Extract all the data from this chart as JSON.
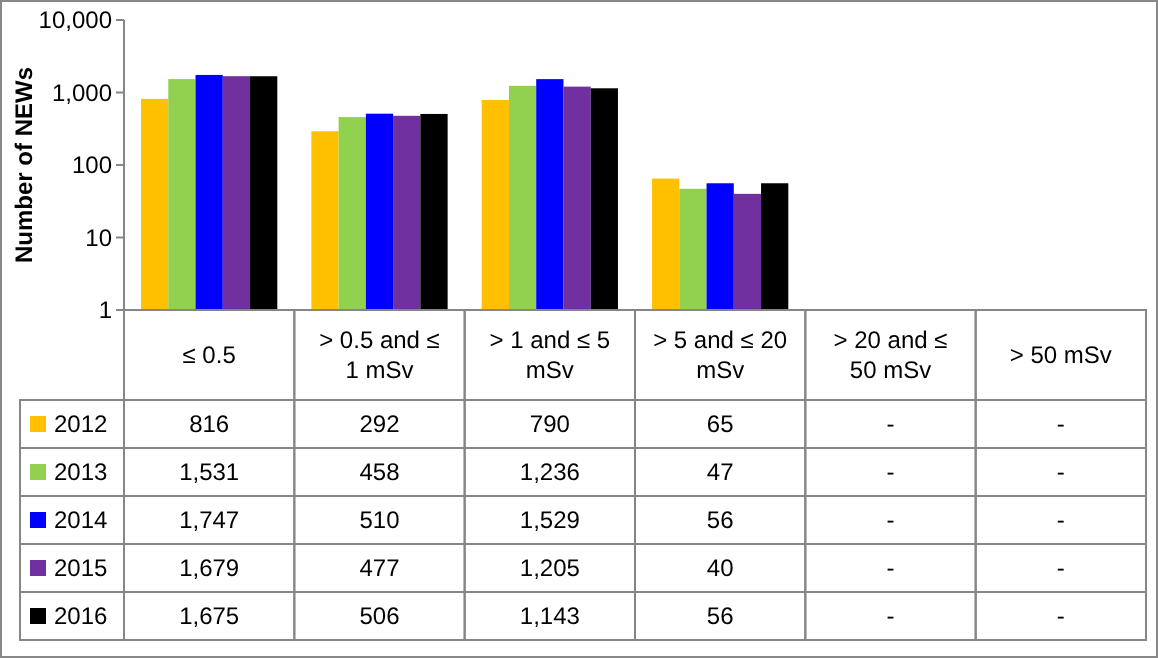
{
  "chart_data": {
    "type": "bar",
    "ylabel": "Number of NEWs",
    "categories": [
      "≤ 0.5",
      "> 0.5 and ≤ 1 mSv",
      "> 1 and ≤ 5 mSv",
      "> 5 and ≤ 20 mSv",
      "> 20 and ≤ 50 mSv",
      "> 50 mSv"
    ],
    "series": [
      {
        "name": "2012",
        "color": "#ffc000",
        "values": [
          816,
          292,
          790,
          65,
          null,
          null
        ],
        "value_labels": [
          "816",
          "292",
          "790",
          "65",
          "-",
          "-"
        ]
      },
      {
        "name": "2013",
        "color": "#92d050",
        "values": [
          1531,
          458,
          1236,
          47,
          null,
          null
        ],
        "value_labels": [
          "1,531",
          "458",
          "1,236",
          "47",
          "-",
          "-"
        ]
      },
      {
        "name": "2014",
        "color": "#0000ff",
        "values": [
          1747,
          510,
          1529,
          56,
          null,
          null
        ],
        "value_labels": [
          "1,747",
          "510",
          "1,529",
          "56",
          "-",
          "-"
        ]
      },
      {
        "name": "2015",
        "color": "#7030a0",
        "values": [
          1679,
          477,
          1205,
          40,
          null,
          null
        ],
        "value_labels": [
          "1,679",
          "477",
          "1,205",
          "40",
          "-",
          "-"
        ]
      },
      {
        "name": "2016",
        "color": "#000000",
        "values": [
          1675,
          506,
          1143,
          56,
          null,
          null
        ],
        "value_labels": [
          "1,675",
          "506",
          "1,143",
          "56",
          "-",
          "-"
        ]
      }
    ],
    "log": true,
    "ylim": [
      1,
      10000
    ],
    "yticks": [
      1,
      10,
      100,
      {
        "value": 1000,
        "label": "1,000"
      },
      {
        "value": 10000,
        "label": "10,000"
      }
    ],
    "legend": "bottom left"
  }
}
